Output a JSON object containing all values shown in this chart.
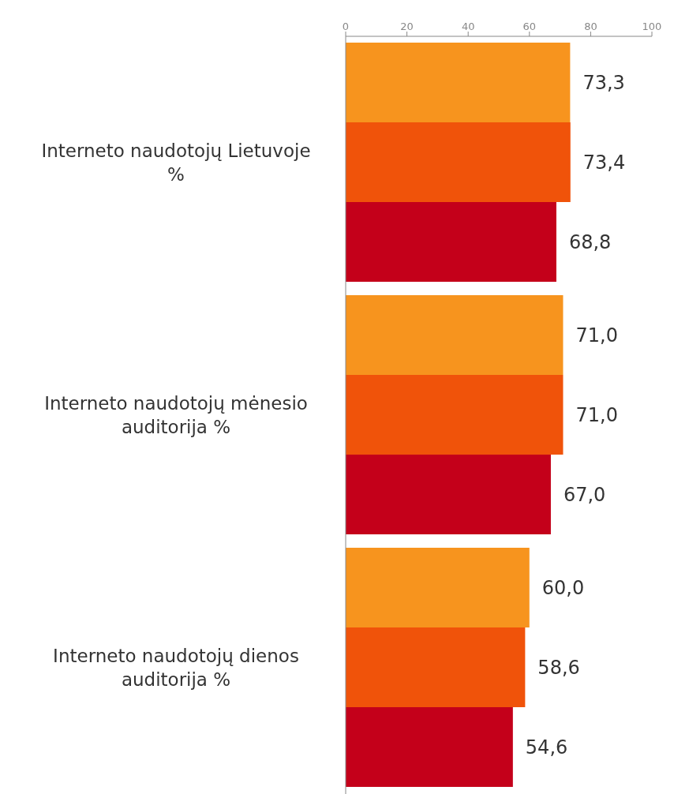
{
  "chart_data": {
    "type": "bar",
    "orientation": "horizontal",
    "categories": [
      "Interneto naudotojų Lietuvoje %",
      "Interneto naudotojų mėnesio auditorija %",
      "Interneto naudotojų dienos auditorija %"
    ],
    "series": [
      {
        "color": "#f7941e",
        "values": [
          73.3,
          71.0,
          60.0
        ],
        "value_labels": [
          "73,3",
          "71,0",
          "60,0"
        ]
      },
      {
        "color": "#f0530a",
        "values": [
          73.4,
          71.0,
          58.6
        ],
        "value_labels": [
          "73,4",
          "71,0",
          "58,6"
        ]
      },
      {
        "color": "#c4001a",
        "values": [
          68.8,
          67.0,
          54.6
        ],
        "value_labels": [
          "68,8",
          "67,0",
          "54,6"
        ]
      }
    ],
    "xlim": [
      0,
      100
    ],
    "xticks": [
      0,
      20,
      40,
      60,
      80,
      100
    ]
  }
}
